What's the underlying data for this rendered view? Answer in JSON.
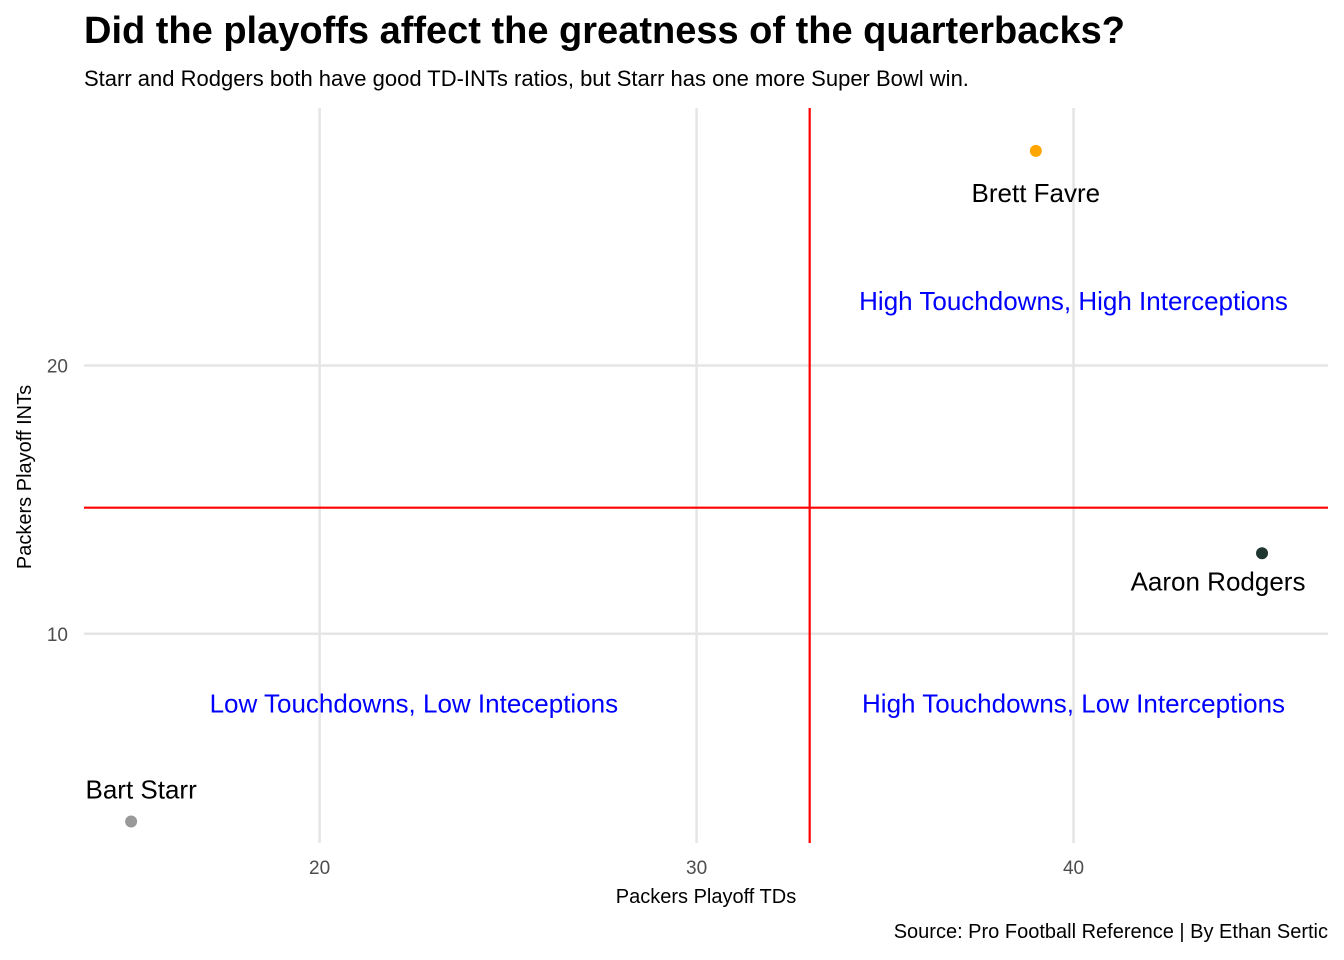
{
  "title": "Did the playoffs affect the greatness of the quarterbacks?",
  "subtitle": "Starr and Rodgers both have good TD-INTs ratios, but Starr has one more Super Bowl win.",
  "caption": "Source: Pro Football Reference | By Ethan Sertic",
  "chart_data": {
    "type": "scatter",
    "title": "Did the playoffs affect the greatness of the quarterbacks?",
    "subtitle": "Starr and Rodgers both have good TD-INTs ratios, but Starr has one more Super Bowl win.",
    "xlabel": "Packers Playoff TDs",
    "ylabel": "Packers Playoff INTs",
    "xlim": [
      13.75,
      46.75
    ],
    "ylim": [
      2.2,
      29.6
    ],
    "x_ticks": [
      20,
      30,
      40
    ],
    "y_ticks": [
      10,
      20
    ],
    "grid": true,
    "points": [
      {
        "name": "Bart Starr",
        "x": 15,
        "y": 3,
        "color": "#999999"
      },
      {
        "name": "Brett Favre",
        "x": 39,
        "y": 28,
        "color": "#FFA500"
      },
      {
        "name": "Aaron Rodgers",
        "x": 45,
        "y": 13,
        "color": "#203731"
      }
    ],
    "reference_lines": {
      "vertical_x": 33,
      "horizontal_y": 14.7,
      "color": "#FF0000"
    },
    "annotations": [
      {
        "text": "High Touchdowns, High Interceptions",
        "x": 40,
        "y": 22.4,
        "color": "#0000FF"
      },
      {
        "text": "Low Touchdowns, Low Inteceptions",
        "x": 22.5,
        "y": 7.4,
        "color": "#0000FF"
      },
      {
        "text": "High Touchdowns, Low Interceptions",
        "x": 40,
        "y": 7.4,
        "color": "#0000FF"
      }
    ]
  }
}
